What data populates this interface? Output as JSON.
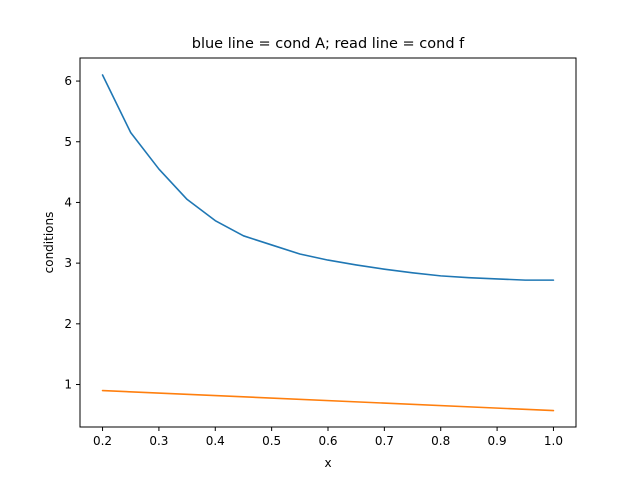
{
  "chart_data": {
    "type": "line",
    "title": "blue line = cond A; read line = cond f",
    "xlabel": "x",
    "ylabel": "conditions",
    "xlim": [
      0.16,
      1.04
    ],
    "ylim": [
      0.3,
      6.38
    ],
    "xticks": [
      0.2,
      0.3,
      0.4,
      0.5,
      0.6,
      0.7,
      0.8,
      0.9,
      1.0
    ],
    "xtick_labels": [
      "0.2",
      "0.3",
      "0.4",
      "0.5",
      "0.6",
      "0.7",
      "0.8",
      "0.9",
      "1.0"
    ],
    "yticks": [
      1,
      2,
      3,
      4,
      5,
      6
    ],
    "ytick_labels": [
      "1",
      "2",
      "3",
      "4",
      "5",
      "6"
    ],
    "grid": false,
    "legend": "none",
    "series": [
      {
        "color": "#1f77b4",
        "x": [
          0.2,
          0.25,
          0.3,
          0.35,
          0.4,
          0.45,
          0.5,
          0.55,
          0.6,
          0.65,
          0.7,
          0.75,
          0.8,
          0.85,
          0.9,
          0.95,
          1.0
        ],
        "y": [
          6.1,
          5.15,
          4.55,
          4.05,
          3.7,
          3.45,
          3.3,
          3.15,
          3.05,
          2.97,
          2.9,
          2.84,
          2.79,
          2.76,
          2.74,
          2.72,
          2.72
        ]
      },
      {
        "color": "#ff7f0e",
        "x": [
          0.2,
          1.0
        ],
        "y": [
          0.9,
          0.57
        ]
      }
    ]
  }
}
